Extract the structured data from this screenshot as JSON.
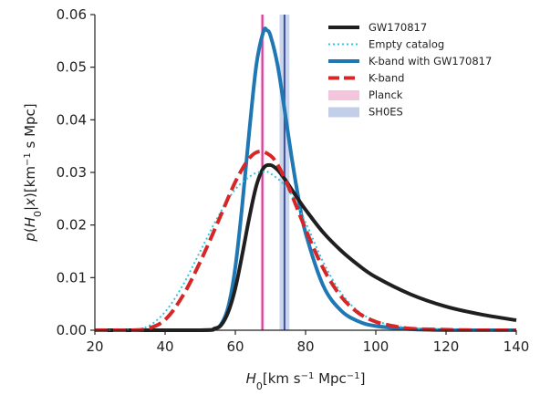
{
  "chart_data": {
    "type": "line",
    "xlabel": "H_0 [km s^-1 Mpc^-1]",
    "ylabel": "p(H_0|x) [km^-1 s Mpc]",
    "xlim": [
      20,
      140
    ],
    "ylim": [
      0,
      0.06
    ],
    "xticks": [
      "20",
      "40",
      "60",
      "80",
      "100",
      "120",
      "140"
    ],
    "yticks": [
      "0.00",
      "0.01",
      "0.02",
      "0.03",
      "0.04",
      "0.05",
      "0.06"
    ],
    "grid": false,
    "legend_position": "top-right",
    "series": [
      {
        "name": "GW170817",
        "color": "#1f1f1f",
        "style": "solid",
        "x": [
          20,
          50,
          54,
          56,
          58,
          60,
          62,
          64,
          66,
          68,
          70,
          72,
          74,
          76,
          78,
          80,
          85,
          90,
          95,
          100,
          110,
          120,
          130,
          140
        ],
        "y": [
          0,
          0,
          0.0003,
          0.001,
          0.0035,
          0.008,
          0.0145,
          0.0215,
          0.0275,
          0.0308,
          0.0314,
          0.0305,
          0.0288,
          0.0268,
          0.0248,
          0.0229,
          0.0186,
          0.0152,
          0.0124,
          0.0101,
          0.0068,
          0.0045,
          0.003,
          0.0019
        ]
      },
      {
        "name": "Empty catalog",
        "color": "#33c5e0",
        "style": "dotted",
        "x": [
          20,
          30,
          35,
          40,
          45,
          50,
          55,
          60,
          65,
          68,
          70,
          75,
          80,
          85,
          90,
          95,
          100,
          105,
          110,
          115,
          120,
          130,
          140
        ],
        "y": [
          0,
          0.0001,
          0.0007,
          0.0035,
          0.0085,
          0.015,
          0.0215,
          0.0268,
          0.0296,
          0.0301,
          0.0298,
          0.0268,
          0.0205,
          0.013,
          0.0072,
          0.0036,
          0.0018,
          0.0009,
          0.0004,
          0.0002,
          0.0001,
          0,
          0
        ]
      },
      {
        "name": "K-band with GW170817",
        "color": "#1f77b4",
        "style": "solid",
        "x": [
          20,
          50,
          54,
          56,
          58,
          60,
          62,
          64,
          66,
          68,
          69,
          70,
          72,
          74,
          76,
          78,
          80,
          85,
          90,
          95,
          100,
          110,
          120,
          130,
          140
        ],
        "y": [
          0,
          0,
          0.0003,
          0.0012,
          0.0045,
          0.012,
          0.024,
          0.038,
          0.0505,
          0.0568,
          0.057,
          0.056,
          0.0505,
          0.042,
          0.033,
          0.025,
          0.0185,
          0.0085,
          0.0038,
          0.0017,
          0.0008,
          0.0002,
          0,
          0,
          0
        ]
      },
      {
        "name": "K-band",
        "color": "#d62728",
        "style": "dashed",
        "x": [
          20,
          30,
          35,
          40,
          45,
          50,
          55,
          60,
          64,
          67,
          70,
          72,
          75,
          80,
          85,
          90,
          95,
          100,
          105,
          110,
          120,
          130,
          140
        ],
        "y": [
          0,
          0,
          0.0003,
          0.002,
          0.0065,
          0.013,
          0.0205,
          0.0282,
          0.0327,
          0.034,
          0.0332,
          0.0315,
          0.0275,
          0.0192,
          0.0118,
          0.0065,
          0.0033,
          0.0016,
          0.0008,
          0.0003,
          0.0001,
          0,
          0
        ]
      }
    ],
    "bands": [
      {
        "name": "Planck",
        "fill": "#f4c6de",
        "line_color": "#e0379b",
        "center": 67.7,
        "range": [
          67.2,
          68.2
        ]
      },
      {
        "name": "SH0ES",
        "fill": "#c3cfe8",
        "line_color": "#3a4fa8",
        "center": 74.0,
        "range": [
          72.6,
          75.4
        ]
      }
    ]
  }
}
